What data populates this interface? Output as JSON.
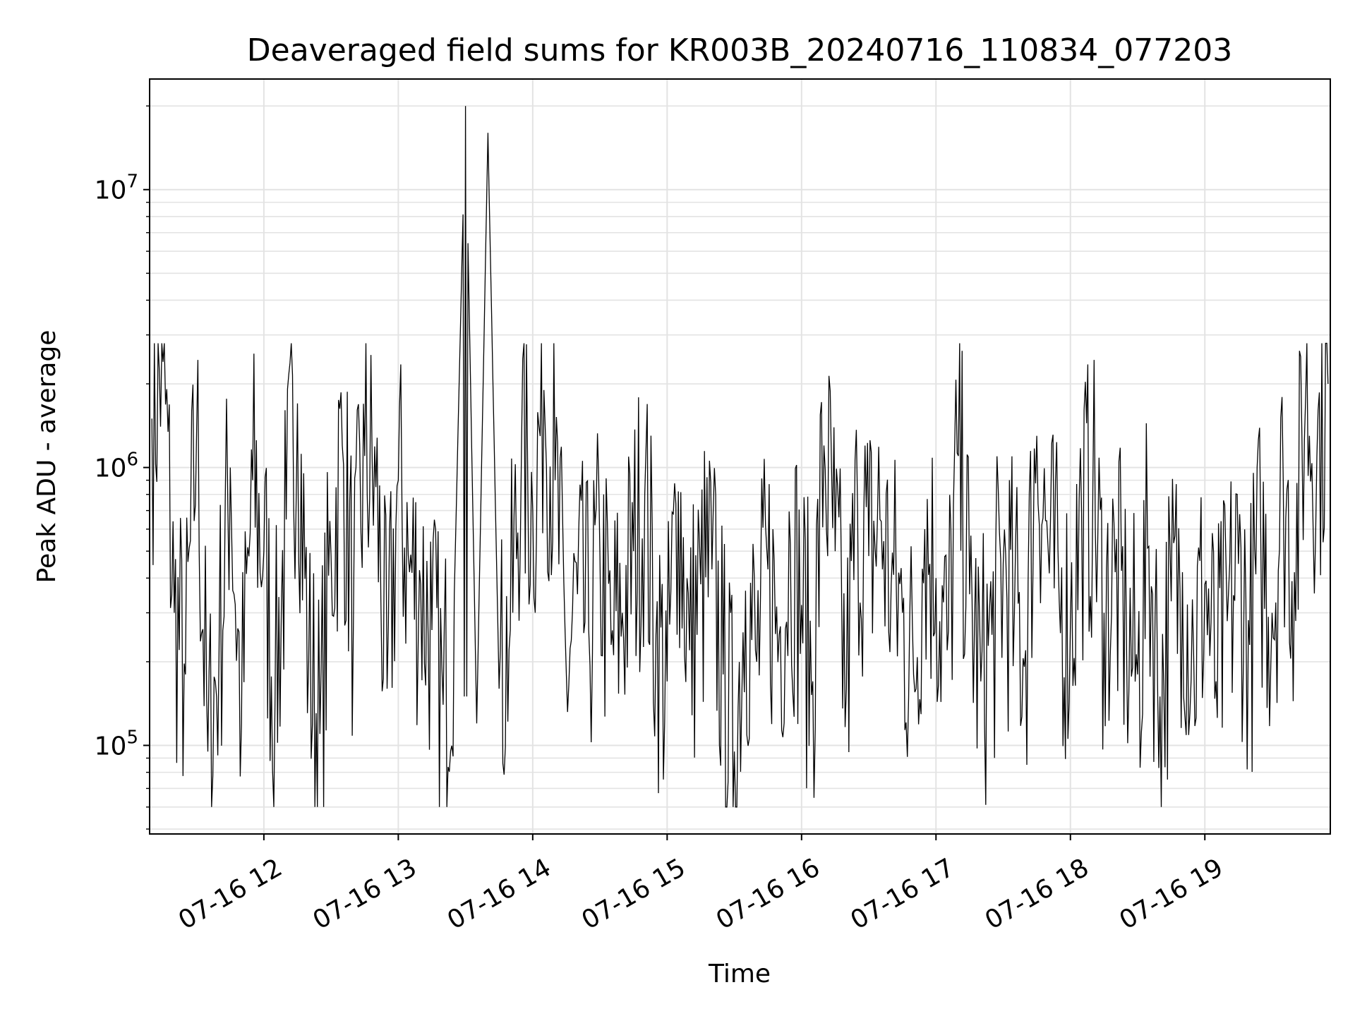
{
  "chart_data": {
    "type": "line",
    "title": "Deaveraged field sums for KR003B_20240716_110834_077203",
    "xlabel": "Time",
    "ylabel": "Peak ADU - average",
    "yscale": "log",
    "ylim": [
      48000,
      25000000
    ],
    "xlim": [
      "07-16 11:09",
      "07-16 19:56"
    ],
    "grid": true,
    "line_color": "#000000",
    "x_tick_labels": [
      "07-16 12",
      "07-16 13",
      "07-16 14",
      "07-16 15",
      "07-16 16",
      "07-16 17",
      "07-16 18",
      "07-16 19"
    ],
    "y_tick_labels": [
      {
        "base": "10",
        "exp": "5"
      },
      {
        "base": "10",
        "exp": "6"
      },
      {
        "base": "10",
        "exp": "7"
      }
    ],
    "series": [
      {
        "x": [
          "07-16 11:10",
          "07-16 11:15",
          "07-16 11:20",
          "07-16 11:25",
          "07-16 11:30",
          "07-16 11:35",
          "07-16 11:40",
          "07-16 11:45",
          "07-16 11:50",
          "07-16 11:55",
          "07-16 12:00",
          "07-16 12:05",
          "07-16 12:10",
          "07-16 12:15",
          "07-16 12:20",
          "07-16 12:25",
          "07-16 12:30",
          "07-16 12:35",
          "07-16 12:40",
          "07-16 12:45",
          "07-16 12:50",
          "07-16 12:55",
          "07-16 13:00",
          "07-16 13:05",
          "07-16 13:10",
          "07-16 13:15",
          "07-16 13:20",
          "07-16 13:25",
          "07-16 13:30",
          "07-16 13:35",
          "07-16 13:40",
          "07-16 13:45",
          "07-16 13:50",
          "07-16 13:55",
          "07-16 14:00",
          "07-16 14:05",
          "07-16 14:10",
          "07-16 14:15",
          "07-16 14:20",
          "07-16 14:25",
          "07-16 14:30",
          "07-16 14:35",
          "07-16 14:40",
          "07-16 14:45",
          "07-16 14:50",
          "07-16 14:55",
          "07-16 15:00",
          "07-16 15:05",
          "07-16 15:10",
          "07-16 15:15",
          "07-16 15:20",
          "07-16 15:25",
          "07-16 15:30",
          "07-16 15:35",
          "07-16 15:40",
          "07-16 15:45",
          "07-16 15:50",
          "07-16 15:55",
          "07-16 16:00",
          "07-16 16:05",
          "07-16 16:10",
          "07-16 16:15",
          "07-16 16:20",
          "07-16 16:25",
          "07-16 16:30",
          "07-16 16:35",
          "07-16 16:40",
          "07-16 16:45",
          "07-16 16:50",
          "07-16 16:55",
          "07-16 17:00",
          "07-16 17:05",
          "07-16 17:10",
          "07-16 17:15",
          "07-16 17:20",
          "07-16 17:25",
          "07-16 17:30",
          "07-16 17:35",
          "07-16 17:40",
          "07-16 17:45",
          "07-16 17:50",
          "07-16 17:55",
          "07-16 18:00",
          "07-16 18:05",
          "07-16 18:10",
          "07-16 18:15",
          "07-16 18:20",
          "07-16 18:25",
          "07-16 18:30",
          "07-16 18:35",
          "07-16 18:40",
          "07-16 18:45",
          "07-16 18:50",
          "07-16 18:55",
          "07-16 19:00",
          "07-16 19:05",
          "07-16 19:10",
          "07-16 19:15",
          "07-16 19:20",
          "07-16 19:25",
          "07-16 19:30",
          "07-16 19:35",
          "07-16 19:40",
          "07-16 19:45",
          "07-16 19:50",
          "07-16 19:55"
        ],
        "y": [
          1500000,
          2400000,
          300000,
          180000,
          1400000,
          95000,
          220000,
          1000000,
          120000,
          900000,
          500000,
          150000,
          650000,
          1700000,
          200000,
          110000,
          480000,
          1200000,
          300000,
          1100000,
          850000,
          160000,
          900000,
          420000,
          380000,
          260000,
          140000,
          350000,
          20000000,
          120000,
          16000000,
          160000,
          260000,
          1200000,
          700000,
          1900000,
          900000,
          180000,
          350000,
          260000,
          480000,
          230000,
          300000,
          500000,
          800000,
          250000,
          170000,
          820000,
          220000,
          380000,
          430000,
          180000,
          95000,
          360000,
          200000,
          430000,
          250000,
          530000,
          320000,
          170000,
          1200000,
          500000,
          160000,
          700000,
          480000,
          650000,
          380000,
          300000,
          180000,
          600000,
          400000,
          220000,
          1100000,
          350000,
          170000,
          250000,
          450000,
          300000,
          220000,
          1300000,
          520000,
          330000,
          270000,
          680000,
          800000,
          300000,
          420000,
          250000,
          180000,
          520000,
          150000,
          330000,
          420000,
          210000,
          380000,
          170000,
          280000,
          450000,
          230000,
          530000,
          300000,
          900000,
          420000,
          1800000,
          1100000,
          2000000
        ]
      }
    ]
  }
}
